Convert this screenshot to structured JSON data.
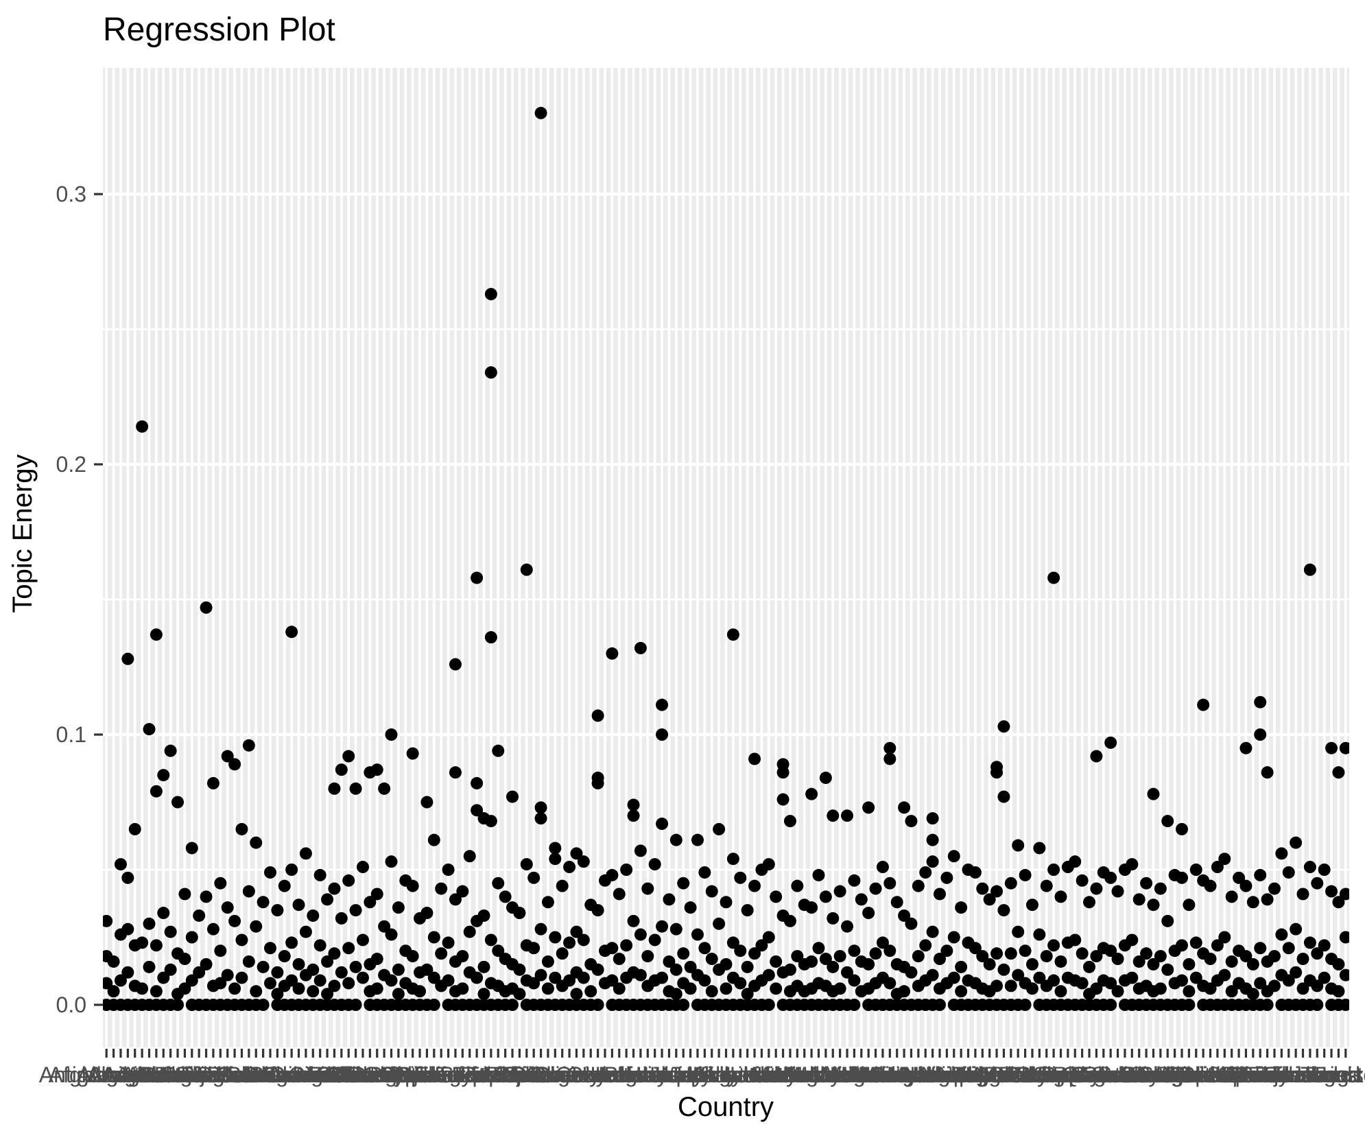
{
  "title": "Regression Plot",
  "colors": {
    "panel_background": "#EBEBEB",
    "gridline": "#FFFFFF",
    "point": "#000000",
    "tick_mark": "#333333",
    "axis_text": "#4D4D4D",
    "title_text": "#000000",
    "page_background": "#FFFFFF"
  },
  "chart_data": {
    "type": "scatter",
    "title": "Regression Plot",
    "xlabel": "Country",
    "ylabel": "Topic Energy",
    "ylim": [
      -0.017,
      0.347
    ],
    "yticks": {
      "values": [
        0,
        0.1,
        0.2,
        0.3
      ],
      "labels": [
        "0.0",
        "0.1",
        "0.2",
        "0.3"
      ]
    },
    "ygrid_minor": [
      0.05,
      0.15,
      0.25
    ],
    "grid": "white-on-gray-ggplot-style",
    "legend": "none",
    "x_axis_style": "one tick per country, labels heavily overlapping into a dark band, only 'Afg…' legible at left",
    "categories": [
      "Afghanistan",
      "Albania",
      "Algeria",
      "Andorra",
      "Angola",
      "Antigua and Barbuda",
      "Argentina",
      "Armenia",
      "Australia",
      "Austria",
      "Azerbaijan",
      "Bahamas",
      "Bahrain",
      "Bangladesh",
      "Barbados",
      "Belarus",
      "Belgium",
      "Belize",
      "Benin",
      "Bhutan",
      "Bolivia",
      "Bosnia and Herzegovina",
      "Botswana",
      "Brazil",
      "Brunei",
      "Bulgaria",
      "Burkina Faso",
      "Burundi",
      "Cabo Verde",
      "Cambodia",
      "Cameroon",
      "Canada",
      "Central African Republic",
      "Chad",
      "Chile",
      "China",
      "Colombia",
      "Comoros",
      "Congo",
      "Costa Rica",
      "Cote d'Ivoire",
      "Croatia",
      "Cuba",
      "Cyprus",
      "Czechia",
      "Denmark",
      "Djibouti",
      "Dominica",
      "Dominican Republic",
      "Ecuador",
      "Egypt",
      "El Salvador",
      "Equatorial Guinea",
      "Eritrea",
      "Estonia",
      "Eswatini",
      "Ethiopia",
      "Fiji",
      "Finland",
      "France",
      "Gabon",
      "Gambia",
      "Georgia",
      "Germany",
      "Ghana",
      "Greece",
      "Grenada",
      "Guatemala",
      "Guinea",
      "Guinea-Bissau",
      "Guyana",
      "Haiti",
      "Honduras",
      "Hungary",
      "Iceland",
      "India",
      "Indonesia",
      "Iran",
      "Iraq",
      "Ireland",
      "Israel",
      "Italy",
      "Jamaica",
      "Japan",
      "Jordan",
      "Kazakhstan",
      "Kenya",
      "Kiribati",
      "Kuwait",
      "Kyrgyzstan",
      "Laos",
      "Latvia",
      "Lebanon",
      "Lesotho",
      "Liberia",
      "Libya",
      "Liechtenstein",
      "Lithuania",
      "Luxembourg",
      "Madagascar",
      "Malawi",
      "Malaysia",
      "Maldives",
      "Mali",
      "Malta",
      "Marshall Islands",
      "Mauritania",
      "Mauritius",
      "Mexico",
      "Micronesia",
      "Moldova",
      "Monaco",
      "Mongolia",
      "Montenegro",
      "Morocco",
      "Mozambique",
      "Myanmar",
      "Namibia",
      "Nauru",
      "Nepal",
      "Netherlands",
      "New Zealand",
      "Nicaragua",
      "Niger",
      "Nigeria",
      "North Korea",
      "North Macedonia",
      "Norway",
      "Oman",
      "Pakistan",
      "Palau",
      "Panama",
      "Papua New Guinea",
      "Paraguay",
      "Peru",
      "Philippines",
      "Poland",
      "Portugal",
      "Qatar",
      "Romania",
      "Russia",
      "Rwanda",
      "Saint Kitts and Nevis",
      "Saint Lucia",
      "Samoa",
      "San Marino",
      "Sao Tome and Principe",
      "Saudi Arabia",
      "Senegal",
      "Serbia",
      "Seychelles",
      "Sierra Leone",
      "Singapore",
      "Slovakia",
      "Slovenia",
      "Solomon Islands",
      "Somalia",
      "South Africa",
      "South Korea",
      "South Sudan",
      "Spain",
      "Sri Lanka",
      "Sudan",
      "Suriname",
      "Sweden",
      "Switzerland",
      "Syria",
      "Tajikistan",
      "Tanzania",
      "Thailand",
      "Timor-Leste",
      "Togo",
      "Tonga",
      "Trinidad and Tobago",
      "Tunisia"
    ],
    "values_by_category": [
      [
        0.031,
        0.018,
        0.008,
        0
      ],
      [
        0,
        0.005,
        0.016
      ],
      [
        0.052,
        0.026,
        0.009,
        0
      ],
      [
        0.128,
        0.047,
        0.028,
        0.012,
        0
      ],
      [
        0.065,
        0.022,
        0.007,
        0
      ],
      [
        0.214,
        0.023,
        0.006,
        0
      ],
      [
        0.102,
        0.03,
        0.014,
        0
      ],
      [
        0.137,
        0.079,
        0.022,
        0.005,
        0
      ],
      [
        0.085,
        0.034,
        0.01,
        0
      ],
      [
        0.094,
        0.027,
        0.013,
        0
      ],
      [
        0.075,
        0.019,
        0.004,
        0
      ],
      [
        0.041,
        0.017,
        0.006
      ],
      [
        0.058,
        0.025,
        0.009,
        0
      ],
      [
        0,
        0.012,
        0.033
      ],
      [
        0.147,
        0.04,
        0.015,
        0
      ],
      [
        0.082,
        0.028,
        0.007,
        0
      ],
      [
        0.045,
        0.02,
        0.008,
        0
      ],
      [
        0.092,
        0.036,
        0.011,
        0
      ],
      [
        0.089,
        0.031,
        0.006,
        0
      ],
      [
        0.065,
        0.024,
        0.01,
        0
      ],
      [
        0.096,
        0.042,
        0.016,
        0
      ],
      [
        0.06,
        0.029,
        0.005,
        0
      ],
      [
        0.038,
        0.014,
        0
      ],
      [
        0.049,
        0.021,
        0.008
      ],
      [
        0.035,
        0.012,
        0.004,
        0
      ],
      [
        0.044,
        0.018,
        0.007,
        0
      ],
      [
        0.138,
        0.05,
        0.023,
        0.009,
        0
      ],
      [
        0.037,
        0.015,
        0.006,
        0
      ],
      [
        0.056,
        0.027,
        0.011,
        0
      ],
      [
        0.033,
        0.013,
        0.005,
        0
      ],
      [
        0.048,
        0.022,
        0.009,
        0
      ],
      [
        0.039,
        0.016,
        0.004,
        0
      ],
      [
        0.08,
        0.043,
        0.019,
        0.007,
        0
      ],
      [
        0.087,
        0.032,
        0.012,
        0
      ],
      [
        0.092,
        0.046,
        0.021,
        0.008,
        0
      ],
      [
        0.08,
        0.035,
        0.014,
        0
      ],
      [
        0.051,
        0.024,
        0.01
      ],
      [
        0.086,
        0.038,
        0.015,
        0.005,
        0
      ],
      [
        0.087,
        0.041,
        0.017,
        0.006,
        0
      ],
      [
        0.08,
        0.029,
        0.011,
        0
      ],
      [
        0.1,
        0.053,
        0.026,
        0.009,
        0
      ],
      [
        0.036,
        0.013,
        0.004,
        0
      ],
      [
        0.046,
        0.02,
        0.008,
        0
      ],
      [
        0.093,
        0.044,
        0.018,
        0.006,
        0
      ],
      [
        0.032,
        0.012,
        0.005,
        0
      ],
      [
        0.075,
        0.034,
        0.013,
        0
      ],
      [
        0.061,
        0.025,
        0.01,
        0
      ],
      [
        0.043,
        0.019,
        0.007
      ],
      [
        0.05,
        0.023,
        0.009,
        0
      ],
      [
        0.126,
        0.086,
        0.039,
        0.016,
        0.005,
        0
      ],
      [
        0.042,
        0.018,
        0.006,
        0
      ],
      [
        0.055,
        0.027,
        0.012,
        0
      ],
      [
        0.158,
        0.082,
        0.072,
        0.031,
        0.01,
        0
      ],
      [
        0.069,
        0.033,
        0.014,
        0.004,
        0
      ],
      [
        0.263,
        0.234,
        0.136,
        0.068,
        0.024,
        0.008,
        0
      ],
      [
        0.094,
        0.045,
        0.02,
        0.007,
        0
      ],
      [
        0.04,
        0.017,
        0.005,
        0
      ],
      [
        0.077,
        0.036,
        0.015,
        0.006,
        0
      ],
      [
        0.034,
        0.013,
        0.004
      ],
      [
        0.161,
        0.052,
        0.022,
        0.009,
        0
      ],
      [
        0.047,
        0.021,
        0.008,
        0
      ],
      [
        0.33,
        0.073,
        0.069,
        0.028,
        0.011,
        0
      ],
      [
        0.038,
        0.016,
        0.006,
        0
      ],
      [
        0.058,
        0.054,
        0.025,
        0.01,
        0
      ],
      [
        0.044,
        0.019,
        0.007,
        0
      ],
      [
        0.051,
        0.023,
        0.009,
        0
      ],
      [
        0.056,
        0.027,
        0.012,
        0.004,
        0
      ],
      [
        0.053,
        0.024,
        0.01,
        0
      ],
      [
        0.037,
        0.015,
        0.005,
        0
      ],
      [
        0.107,
        0.084,
        0.082,
        0.035,
        0.013,
        0
      ],
      [
        0.046,
        0.02,
        0.008
      ],
      [
        0.13,
        0.048,
        0.021,
        0.009,
        0
      ],
      [
        0.041,
        0.017,
        0.006,
        0
      ],
      [
        0.05,
        0.022,
        0.01,
        0
      ],
      [
        0.074,
        0.07,
        0.031,
        0.012,
        0
      ],
      [
        0.132,
        0.057,
        0.026,
        0.011,
        0
      ],
      [
        0.043,
        0.018,
        0.007,
        0
      ],
      [
        0.052,
        0.024,
        0.009,
        0
      ],
      [
        0.111,
        0.1,
        0.067,
        0.029,
        0.01,
        0
      ],
      [
        0.039,
        0.016,
        0.005,
        0
      ],
      [
        0.061,
        0.028,
        0.013,
        0.004,
        0
      ],
      [
        0.045,
        0.019,
        0.008,
        0
      ],
      [
        0.036,
        0.014,
        0.006
      ],
      [
        0.061,
        0.026,
        0.011,
        0
      ],
      [
        0.049,
        0.021,
        0.009,
        0
      ],
      [
        0.042,
        0.017,
        0.005,
        0
      ],
      [
        0.065,
        0.03,
        0.013,
        0
      ],
      [
        0.038,
        0.015,
        0.006,
        0
      ],
      [
        0.137,
        0.054,
        0.023,
        0.01,
        0
      ],
      [
        0.047,
        0.02,
        0.008,
        0
      ],
      [
        0.035,
        0.014,
        0.004,
        0
      ],
      [
        0.091,
        0.044,
        0.019,
        0.007,
        0
      ],
      [
        0.05,
        0.022,
        0.009,
        0
      ],
      [
        0.052,
        0.025,
        0.011,
        0
      ],
      [
        0.04,
        0.016,
        0.006
      ],
      [
        0.089,
        0.086,
        0.076,
        0.033,
        0.012,
        0
      ],
      [
        0.068,
        0.031,
        0.013,
        0.005,
        0
      ],
      [
        0.044,
        0.018,
        0.007,
        0
      ],
      [
        0.037,
        0.015,
        0.005,
        0
      ],
      [
        0.078,
        0.036,
        0.016,
        0.006,
        0
      ],
      [
        0.048,
        0.021,
        0.008,
        0
      ],
      [
        0.084,
        0.04,
        0.017,
        0.007,
        0
      ],
      [
        0.07,
        0.032,
        0.014,
        0.005,
        0
      ],
      [
        0.042,
        0.018,
        0.006,
        0
      ],
      [
        0.07,
        0.029,
        0.012,
        0
      ],
      [
        0.046,
        0.02,
        0.009,
        0
      ],
      [
        0.039,
        0.016,
        0.005
      ],
      [
        0.073,
        0.034,
        0.015,
        0.006,
        0
      ],
      [
        0.043,
        0.019,
        0.008,
        0
      ],
      [
        0.051,
        0.023,
        0.01,
        0
      ],
      [
        0.095,
        0.091,
        0.045,
        0.02,
        0.008,
        0
      ],
      [
        0.038,
        0.015,
        0.004,
        0
      ],
      [
        0.073,
        0.033,
        0.014,
        0.005,
        0
      ],
      [
        0.068,
        0.03,
        0.012,
        0
      ],
      [
        0.044,
        0.018,
        0.007,
        0
      ],
      [
        0.049,
        0.022,
        0.009,
        0
      ],
      [
        0.069,
        0.061,
        0.053,
        0.027,
        0.011,
        0
      ],
      [
        0.041,
        0.017,
        0.006,
        0
      ],
      [
        0.047,
        0.02,
        0.008
      ],
      [
        0.055,
        0.025,
        0.01,
        0
      ],
      [
        0.036,
        0.014,
        0.005,
        0
      ],
      [
        0.05,
        0.023,
        0.009,
        0
      ],
      [
        0.049,
        0.021,
        0.008,
        0
      ],
      [
        0.043,
        0.018,
        0.006,
        0
      ],
      [
        0.039,
        0.015,
        0.005,
        0
      ],
      [
        0.088,
        0.086,
        0.042,
        0.019,
        0.007,
        0
      ],
      [
        0.103,
        0.077,
        0.035,
        0.013,
        0
      ],
      [
        0.045,
        0.019,
        0.007,
        0
      ],
      [
        0.059,
        0.027,
        0.011,
        0
      ],
      [
        0.048,
        0.02,
        0.008,
        0
      ],
      [
        0.037,
        0.015,
        0.006
      ],
      [
        0.058,
        0.026,
        0.01,
        0
      ],
      [
        0.044,
        0.018,
        0.007,
        0
      ],
      [
        0.158,
        0.05,
        0.022,
        0.009,
        0
      ],
      [
        0.04,
        0.016,
        0.005,
        0
      ],
      [
        0.051,
        0.023,
        0.01,
        0
      ],
      [
        0.053,
        0.024,
        0.009,
        0
      ],
      [
        0.046,
        0.019,
        0.008,
        0
      ],
      [
        0.038,
        0.014,
        0.004,
        0
      ],
      [
        0.092,
        0.043,
        0.018,
        0.006,
        0
      ],
      [
        0.049,
        0.021,
        0.009,
        0
      ],
      [
        0.097,
        0.047,
        0.02,
        0.008,
        0
      ],
      [
        0.042,
        0.017,
        0.005
      ],
      [
        0.05,
        0.022,
        0.009,
        0
      ],
      [
        0.052,
        0.024,
        0.01,
        0
      ],
      [
        0.039,
        0.016,
        0.006,
        0
      ],
      [
        0.045,
        0.019,
        0.007,
        0
      ],
      [
        0.078,
        0.037,
        0.015,
        0.005,
        0
      ],
      [
        0.043,
        0.018,
        0.006,
        0
      ],
      [
        0.068,
        0.031,
        0.013,
        0
      ],
      [
        0.048,
        0.02,
        0.008,
        0
      ],
      [
        0.065,
        0.047,
        0.022,
        0.009,
        0
      ],
      [
        0.037,
        0.015,
        0.005,
        0
      ],
      [
        0.05,
        0.023,
        0.01
      ],
      [
        0.111,
        0.046,
        0.019,
        0.007,
        0
      ],
      [
        0.044,
        0.017,
        0.006,
        0
      ],
      [
        0.051,
        0.022,
        0.009,
        0
      ],
      [
        0.054,
        0.025,
        0.011,
        0
      ],
      [
        0.04,
        0.016,
        0.005,
        0
      ],
      [
        0.047,
        0.02,
        0.008,
        0
      ],
      [
        0.095,
        0.044,
        0.018,
        0.006,
        0
      ],
      [
        0.038,
        0.015,
        0.004,
        0
      ],
      [
        0.112,
        0.1,
        0.048,
        0.021,
        0.008,
        0
      ],
      [
        0.086,
        0.039,
        0.016,
        0.005,
        0
      ],
      [
        0.043,
        0.018,
        0.007
      ],
      [
        0.056,
        0.026,
        0.011,
        0
      ],
      [
        0.049,
        0.021,
        0.009,
        0
      ],
      [
        0.06,
        0.028,
        0.012,
        0
      ],
      [
        0.041,
        0.017,
        0.006,
        0
      ],
      [
        0.161,
        0.051,
        0.023,
        0.009,
        0
      ],
      [
        0.045,
        0.019,
        0.007,
        0
      ],
      [
        0.05,
        0.022,
        0.01
      ],
      [
        0.095,
        0.042,
        0.017,
        0.006,
        0
      ],
      [
        0.086,
        0.038,
        0.015,
        0.005,
        0
      ],
      [
        0.095,
        0.041,
        0.025,
        0.011,
        0
      ]
    ]
  }
}
